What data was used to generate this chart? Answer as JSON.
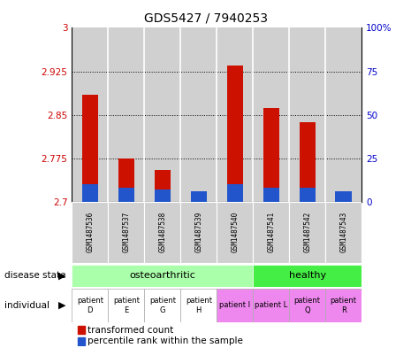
{
  "title": "GDS5427 / 7940253",
  "samples": [
    "GSM1487536",
    "GSM1487537",
    "GSM1487538",
    "GSM1487539",
    "GSM1487540",
    "GSM1487541",
    "GSM1487542",
    "GSM1487543"
  ],
  "red_values": [
    2.885,
    2.775,
    2.755,
    2.718,
    2.935,
    2.862,
    2.838,
    2.718
  ],
  "blue_values": [
    0.03,
    0.025,
    0.022,
    0.018,
    0.03,
    0.025,
    0.025,
    0.018
  ],
  "y_min": 2.7,
  "y_max": 3.0,
  "y_ticks": [
    2.7,
    2.775,
    2.85,
    2.925,
    3.0
  ],
  "y_tick_labels": [
    "2.7",
    "2.775",
    "2.85",
    "2.925",
    "3"
  ],
  "y2_ticks": [
    0,
    25,
    50,
    75,
    100
  ],
  "y2_tick_labels": [
    "0",
    "25",
    "50",
    "75",
    "100%"
  ],
  "disease_state_groups": [
    {
      "label": "osteoarthritic",
      "start": 0,
      "end": 5,
      "color": "#aaffaa"
    },
    {
      "label": "healthy",
      "start": 5,
      "end": 8,
      "color": "#44ee44"
    }
  ],
  "individual_labels": [
    "patient\nD",
    "patient\nE",
    "patient\nG",
    "patient\nH",
    "patient I",
    "patient L",
    "patient\nQ",
    "patient\nR"
  ],
  "individual_colors": [
    "#ffffff",
    "#ffffff",
    "#ffffff",
    "#ffffff",
    "#ee88ee",
    "#ee88ee",
    "#ee88ee",
    "#ee88ee"
  ],
  "bar_bg_color": "#d0d0d0",
  "red_color": "#cc1100",
  "blue_color": "#2255cc",
  "left_label_color": "#cc0000",
  "right_label_color": "#0000cc",
  "grid_color": "#555555",
  "fig_width": 4.65,
  "fig_height": 3.93,
  "fig_dpi": 100
}
